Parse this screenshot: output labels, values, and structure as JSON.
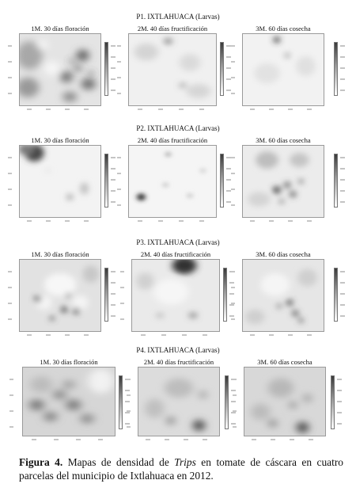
{
  "rows": [
    {
      "title": "P1. IXTLAHUACA (Larvas)",
      "panels": [
        {
          "title": "1M. 30 días floración"
        },
        {
          "title": "2M. 40 días fructificación"
        },
        {
          "title": "3M. 60 días cosecha"
        }
      ]
    },
    {
      "title": "P2. IXTLAHUACA (Larvas)",
      "panels": [
        {
          "title": "1M. 30 días floración"
        },
        {
          "title": "2M. 40 días fructificación"
        },
        {
          "title": "3M. 60 días cosecha"
        }
      ]
    },
    {
      "title": "P3. IXTLAHUACA (Larvas)",
      "panels": [
        {
          "title": "1M. 30 días floración"
        },
        {
          "title": "2M. 40 días fructificación"
        },
        {
          "title": "3M. 60 días cosecha"
        }
      ]
    },
    {
      "title": "P4. IXTLAHUACA (Larvas)",
      "panels": [
        {
          "title": "1M. 30 días floración"
        },
        {
          "title": "2M. 40 días fructificación"
        },
        {
          "title": "3M. 60 días cosecha"
        }
      ]
    }
  ],
  "caption": {
    "label": "Figura 4.",
    "text_before": " Mapas de densidad de ",
    "italic": "Trips",
    "text_after": " en tomate de cáscara en cuatro parcelas del municipio de Ixtlahuaca en 2012."
  }
}
